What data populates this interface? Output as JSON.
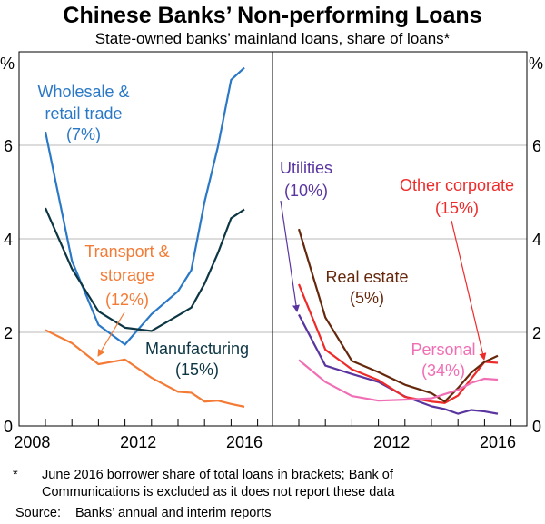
{
  "chart_data": [
    {
      "type": "line",
      "title": "Chinese Banks’ Non-performing Loans",
      "subtitle": "State-owned banks’ mainland loans, share of loans*",
      "ylabel": "%",
      "ylim": [
        0,
        8
      ],
      "yticks": [
        "0",
        "2",
        "4",
        "6"
      ],
      "xticks": [
        "2008",
        "2012",
        "2016"
      ],
      "grid": true,
      "x": [
        "2008-12",
        "2009-12",
        "2010-12",
        "2011-12",
        "2012-12",
        "2013-12",
        "2014-06",
        "2014-12",
        "2015-06",
        "2015-12",
        "2016-06"
      ],
      "series": [
        {
          "name": "Wholesale & retail trade",
          "share": "(7%)",
          "color": "#2a78c6",
          "values": [
            6.29,
            3.53,
            2.16,
            1.74,
            2.39,
            2.88,
            3.33,
            4.79,
            5.96,
            7.4,
            7.66
          ]
        },
        {
          "name": "Manufacturing",
          "share": "(15%)",
          "color": "#0d3644",
          "values": [
            4.66,
            3.36,
            2.45,
            2.1,
            2.03,
            2.36,
            2.53,
            3.04,
            3.69,
            4.44,
            4.63
          ]
        },
        {
          "name": "Transport & storage",
          "share": "(12%)",
          "color": "#f47b35",
          "values": [
            2.05,
            1.77,
            1.32,
            1.42,
            1.03,
            0.73,
            0.71,
            0.52,
            0.54,
            0.47,
            0.41
          ]
        }
      ]
    },
    {
      "type": "line",
      "ylabel": "%",
      "ylim": [
        0,
        8
      ],
      "yticks": [
        "0",
        "2",
        "4",
        "6"
      ],
      "xticks": [
        "2012",
        "2016"
      ],
      "grid": true,
      "x": [
        "2008-12",
        "2009-12",
        "2010-12",
        "2011-12",
        "2012-12",
        "2013-12",
        "2014-06",
        "2014-12",
        "2015-06",
        "2015-12",
        "2016-06"
      ],
      "series": [
        {
          "name": "Utilities",
          "share": "(10%)",
          "color": "#5a35a0",
          "values": [
            2.38,
            1.29,
            1.11,
            0.94,
            0.63,
            0.42,
            0.36,
            0.26,
            0.34,
            0.31,
            0.26
          ]
        },
        {
          "name": "Other corporate",
          "share": "(15%)",
          "color": "#ee2b2b",
          "values": [
            3.03,
            1.63,
            1.21,
            0.98,
            0.62,
            0.52,
            0.49,
            0.65,
            1.01,
            1.37,
            1.35
          ]
        },
        {
          "name": "Real estate",
          "share": "(5%)",
          "color": "#65280d",
          "values": [
            4.21,
            2.32,
            1.39,
            1.15,
            0.88,
            0.7,
            0.52,
            0.81,
            1.14,
            1.37,
            1.5
          ]
        },
        {
          "name": "Personal",
          "share": "(34%)",
          "color": "#f06eb4",
          "values": [
            1.41,
            0.94,
            0.64,
            0.54,
            0.56,
            0.59,
            0.68,
            0.77,
            0.92,
            1.01,
            0.99
          ]
        }
      ]
    }
  ],
  "footnote_marker": "*",
  "footnote": [
    "June 2016 borrower share of total loans in brackets; Bank of",
    "Communications is excluded as it does not report these data"
  ],
  "source_label": "Source:",
  "source": "Banks’ annual and interim reports"
}
